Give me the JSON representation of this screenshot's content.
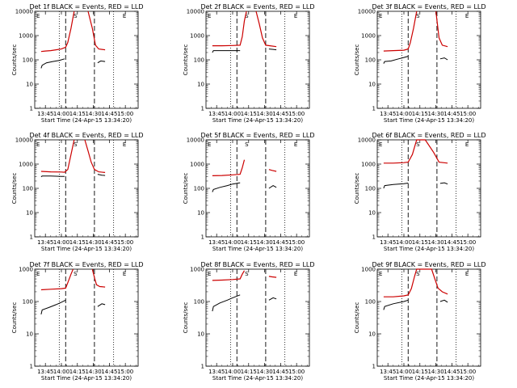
{
  "time_ticks": [
    "13:45",
    "14:00",
    "14:15",
    "14:30",
    "14:45",
    "15:00"
  ],
  "y_ticks": [
    "1",
    "10",
    "100",
    "1000",
    "10000"
  ],
  "y_label": "Counts/sec",
  "x_label": "Start Time (24-Apr-15 13:34:20)",
  "marker_letters": [
    "E",
    "S",
    "E"
  ],
  "colors": {
    "events": "#000000",
    "lld": "#cc0000"
  },
  "chart_data": [
    {
      "type": "line",
      "title": "Det 1f BLACK = Events, RED = LLD",
      "xlabel": "Start Time (24-Apr-15 13:34:20)",
      "ylabel": "Counts/sec",
      "ylim": [
        1,
        10000
      ],
      "y_scale": "log",
      "series": [
        {
          "name": "Events",
          "color": "#000000",
          "segments": [
            {
              "x": [
                "13:41",
                "13:42",
                "13:46",
                "13:52",
                "13:58",
                "14:03"
              ],
              "y": [
                45,
                60,
                75,
                85,
                95,
                110
              ]
            },
            {
              "x": [
                "14:34",
                "14:37",
                "14:41"
              ],
              "y": [
                75,
                90,
                85
              ]
            }
          ]
        },
        {
          "name": "LLD",
          "color": "#cc0000",
          "segments": [
            {
              "x": [
                "13:41",
                "13:45",
                "13:50",
                "13:55",
                "14:00",
                "14:04",
                "14:06",
                "14:09",
                "14:12"
              ],
              "y": [
                220,
                230,
                240,
                260,
                280,
                330,
                520,
                2000,
                10000
              ]
            },
            {
              "x": [
                "14:25",
                "14:29",
                "14:32",
                "14:35",
                "14:41"
              ],
              "y": [
                10000,
                2000,
                400,
                280,
                260
              ]
            }
          ]
        }
      ]
    },
    {
      "type": "line",
      "title": "Det 2f BLACK = Events, RED = LLD",
      "xlabel": "Start Time (24-Apr-15 13:34:20)",
      "ylabel": "Counts/sec",
      "ylim": [
        1,
        10000
      ],
      "y_scale": "log",
      "series": [
        {
          "name": "Events",
          "color": "#000000",
          "segments": [
            {
              "x": [
                "13:41",
                "13:42",
                "13:50",
                "14:00",
                "14:07"
              ],
              "y": [
                200,
                240,
                240,
                240,
                240
              ]
            },
            {
              "x": [
                "14:34",
                "14:38",
                "14:41"
              ],
              "y": [
                280,
                270,
                260
              ]
            }
          ]
        },
        {
          "name": "LLD",
          "color": "#cc0000",
          "segments": [
            {
              "x": [
                "13:41",
                "13:50",
                "14:00",
                "14:07",
                "14:09",
                "14:11",
                "14:13"
              ],
              "y": [
                380,
                380,
                390,
                400,
                900,
                4000,
                10000
              ]
            },
            {
              "x": [
                "14:22",
                "14:25",
                "14:28",
                "14:31",
                "14:35",
                "14:41"
              ],
              "y": [
                10000,
                3000,
                800,
                400,
                380,
                350
              ]
            }
          ]
        }
      ]
    },
    {
      "type": "line",
      "title": "Det 3f BLACK = Events, RED = LLD",
      "xlabel": "Start Time (24-Apr-15 13:34:20)",
      "ylabel": "Counts/sec",
      "ylim": [
        1,
        10000
      ],
      "y_scale": "log",
      "series": [
        {
          "name": "Events",
          "color": "#000000",
          "segments": [
            {
              "x": [
                "13:41",
                "13:42",
                "13:48",
                "13:55",
                "14:00",
                "14:04"
              ],
              "y": [
                70,
                85,
                90,
                110,
                125,
                140
              ]
            },
            {
              "x": [
                "14:34",
                "14:38",
                "14:41"
              ],
              "y": [
                110,
                120,
                100
              ]
            }
          ]
        },
        {
          "name": "LLD",
          "color": "#cc0000",
          "segments": [
            {
              "x": [
                "13:41",
                "13:50",
                "14:00",
                "14:04",
                "14:06",
                "14:09",
                "14:12"
              ],
              "y": [
                230,
                240,
                250,
                280,
                500,
                2000,
                10000
              ]
            },
            {
              "x": [
                "14:30",
                "14:33",
                "14:36",
                "14:41"
              ],
              "y": [
                10000,
                800,
                400,
                350
              ]
            }
          ]
        }
      ]
    },
    {
      "type": "line",
      "title": "Det 4f BLACK = Events, RED = LLD",
      "xlabel": "Start Time (24-Apr-15 13:34:20)",
      "ylabel": "Counts/sec",
      "ylim": [
        1,
        10000
      ],
      "y_scale": "log",
      "series": [
        {
          "name": "Events",
          "color": "#000000",
          "segments": [
            {
              "x": [
                "13:41",
                "13:42",
                "13:50",
                "14:00",
                "14:03"
              ],
              "y": [
                300,
                320,
                320,
                310,
                310
              ]
            },
            {
              "x": [
                "14:34",
                "14:38",
                "14:41"
              ],
              "y": [
                380,
                350,
                340
              ]
            }
          ]
        },
        {
          "name": "LLD",
          "color": "#cc0000",
          "segments": [
            {
              "x": [
                "13:41",
                "13:50",
                "14:00",
                "14:03",
                "14:06",
                "14:09",
                "14:12"
              ],
              "y": [
                500,
                480,
                470,
                460,
                600,
                2500,
                10000
              ]
            },
            {
              "x": [
                "14:22",
                "14:25",
                "14:28",
                "14:31",
                "14:35",
                "14:41"
              ],
              "y": [
                10000,
                3500,
                1200,
                600,
                480,
                450
              ]
            }
          ]
        }
      ]
    },
    {
      "type": "line",
      "title": "Det 5f BLACK = Events, RED = LLD",
      "xlabel": "Start Time (24-Apr-15 13:34:20)",
      "ylabel": "Counts/sec",
      "ylim": [
        1,
        10000
      ],
      "y_scale": "log",
      "series": [
        {
          "name": "Events",
          "color": "#000000",
          "segments": [
            {
              "x": [
                "13:41",
                "13:42",
                "13:48",
                "13:55",
                "14:00",
                "14:07"
              ],
              "y": [
                70,
                90,
                110,
                130,
                150,
                170
              ]
            },
            {
              "x": [
                "14:34",
                "14:38",
                "14:41"
              ],
              "y": [
                100,
                130,
                110
              ]
            }
          ]
        },
        {
          "name": "LLD",
          "color": "#cc0000",
          "segments": [
            {
              "x": [
                "13:41",
                "13:50",
                "14:00",
                "14:07",
                "14:09",
                "14:11"
              ],
              "y": [
                330,
                340,
                360,
                380,
                700,
                1500
              ]
            },
            {
              "x": [
                "14:34",
                "14:37",
                "14:41"
              ],
              "y": [
                600,
                550,
                500
              ]
            }
          ]
        }
      ]
    },
    {
      "type": "line",
      "title": "Det 6f BLACK = Events, RED = LLD",
      "xlabel": "Start Time (24-Apr-15 13:34:20)",
      "ylabel": "Counts/sec",
      "ylim": [
        1,
        10000
      ],
      "y_scale": "log",
      "series": [
        {
          "name": "Events",
          "color": "#000000",
          "segments": [
            {
              "x": [
                "13:41",
                "13:42",
                "13:50",
                "14:00",
                "14:04"
              ],
              "y": [
                100,
                130,
                145,
                155,
                165
              ]
            },
            {
              "x": [
                "14:34",
                "14:38",
                "14:41"
              ],
              "y": [
                160,
                170,
                150
              ]
            }
          ]
        },
        {
          "name": "LLD",
          "color": "#cc0000",
          "segments": [
            {
              "x": [
                "13:41",
                "13:50",
                "14:00",
                "14:04",
                "14:08",
                "14:12",
                "14:20",
                "14:28",
                "14:33",
                "14:41"
              ],
              "y": [
                1100,
                1100,
                1150,
                1200,
                2500,
                10000,
                10000,
                3000,
                1200,
                1100
              ]
            }
          ]
        }
      ]
    },
    {
      "type": "line",
      "title": "Det 7f BLACK = Events, RED = LLD",
      "xlabel": "Start Time (24-Apr-15 13:34:20)",
      "ylabel": "Counts/sec",
      "ylim": [
        1,
        1000
      ],
      "y_scale": "log",
      "series": [
        {
          "name": "Events",
          "color": "#000000",
          "segments": [
            {
              "x": [
                "13:41",
                "13:42",
                "13:48",
                "13:55",
                "14:00",
                "14:04"
              ],
              "y": [
                40,
                55,
                65,
                80,
                95,
                110
              ]
            },
            {
              "x": [
                "14:34",
                "14:38",
                "14:41"
              ],
              "y": [
                70,
                85,
                80
              ]
            }
          ]
        },
        {
          "name": "LLD",
          "color": "#cc0000",
          "segments": [
            {
              "x": [
                "13:41",
                "13:50",
                "14:00",
                "14:04",
                "14:06",
                "14:09",
                "14:11"
              ],
              "y": [
                230,
                240,
                250,
                260,
                380,
                700,
                1000
              ]
            },
            {
              "x": [
                "14:29",
                "14:31",
                "14:33",
                "14:36",
                "14:41"
              ],
              "y": [
                1000,
                550,
                330,
                290,
                280
              ]
            }
          ]
        }
      ]
    },
    {
      "type": "line",
      "title": "Det 8f BLACK = Events, RED = LLD",
      "xlabel": "Start Time (24-Apr-15 13:34:20)",
      "ylabel": "Counts/sec",
      "ylim": [
        1,
        1000
      ],
      "y_scale": "log",
      "series": [
        {
          "name": "Events",
          "color": "#000000",
          "segments": [
            {
              "x": [
                "13:41",
                "13:42",
                "13:48",
                "13:55",
                "14:00",
                "14:07"
              ],
              "y": [
                50,
                70,
                90,
                110,
                130,
                160
              ]
            },
            {
              "x": [
                "14:34",
                "14:38",
                "14:41"
              ],
              "y": [
                110,
                130,
                120
              ]
            }
          ]
        },
        {
          "name": "LLD",
          "color": "#cc0000",
          "segments": [
            {
              "x": [
                "13:41",
                "13:50",
                "14:00",
                "14:07",
                "14:09",
                "14:11"
              ],
              "y": [
                450,
                460,
                480,
                500,
                700,
                900
              ]
            },
            {
              "x": [
                "14:34",
                "14:37",
                "14:41"
              ],
              "y": [
                600,
                580,
                560
              ]
            }
          ]
        }
      ]
    },
    {
      "type": "line",
      "title": "Det 9f BLACK = Events, RED = LLD",
      "xlabel": "Start Time (24-Apr-15 13:34:20)",
      "ylabel": "Counts/sec",
      "ylim": [
        1,
        1000
      ],
      "y_scale": "log",
      "series": [
        {
          "name": "Events",
          "color": "#000000",
          "segments": [
            {
              "x": [
                "13:41",
                "13:42",
                "13:50",
                "14:00",
                "14:04"
              ],
              "y": [
                55,
                70,
                85,
                100,
                110
              ]
            },
            {
              "x": [
                "14:34",
                "14:38",
                "14:41"
              ],
              "y": [
                100,
                110,
                95
              ]
            }
          ]
        },
        {
          "name": "LLD",
          "color": "#cc0000",
          "segments": [
            {
              "x": [
                "13:41",
                "13:50",
                "14:00",
                "14:04",
                "14:07",
                "14:10",
                "14:12",
                "14:18",
                "14:26",
                "14:29",
                "14:32",
                "14:36",
                "14:41"
              ],
              "y": [
                140,
                140,
                150,
                160,
                250,
                600,
                1000,
                1000,
                1000,
                500,
                260,
                200,
                170
              ]
            }
          ]
        }
      ]
    }
  ]
}
